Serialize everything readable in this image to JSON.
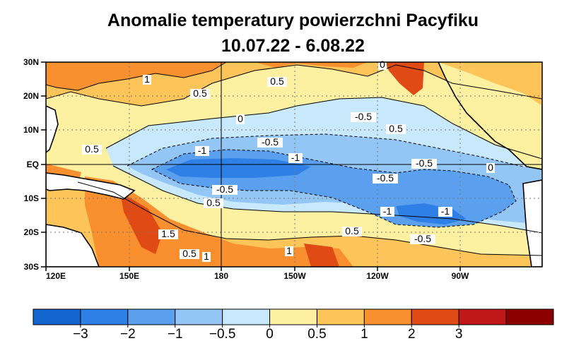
{
  "title": "Anomalie temperatury powierzchni Pacyfiku",
  "subtitle": "10.07.22 - 6.08.22",
  "map": {
    "lat_ticks": [
      "30N",
      "20N",
      "10N",
      "EQ",
      "10S",
      "20S",
      "30S"
    ],
    "lon_ticks": [
      "120E",
      "150E",
      "180",
      "150W",
      "120W",
      "90W"
    ],
    "contour_labels": [
      {
        "text": "1"
      },
      {
        "text": "0.5"
      },
      {
        "text": "0"
      },
      {
        "text": "0.5"
      },
      {
        "text": "0.5"
      },
      {
        "text": "-0.5"
      },
      {
        "text": "0"
      },
      {
        "text": "0.5"
      },
      {
        "text": "-1"
      },
      {
        "text": "-0.5"
      },
      {
        "text": "-1"
      },
      {
        "text": "-0.5"
      },
      {
        "text": "0"
      },
      {
        "text": "-0.5"
      },
      {
        "text": "-0.5"
      },
      {
        "text": "0.5"
      },
      {
        "text": "1.5"
      },
      {
        "text": "0.5"
      },
      {
        "text": "1"
      },
      {
        "text": "1"
      },
      {
        "text": "-1"
      },
      {
        "text": "-1"
      },
      {
        "text": "0.5"
      },
      {
        "text": "-0.5"
      }
    ]
  },
  "colorbar": {
    "colors": [
      "#1565d0",
      "#2f80e6",
      "#5aa0ee",
      "#93c6f4",
      "#c8e9fb",
      "#fdf0a0",
      "#fdc45a",
      "#f89030",
      "#e04a14",
      "#c01818",
      "#8c0000"
    ],
    "labels": [
      "−3",
      "−2",
      "−1",
      "−0.5",
      "0",
      "0.5",
      "1",
      "2",
      "3"
    ]
  }
}
